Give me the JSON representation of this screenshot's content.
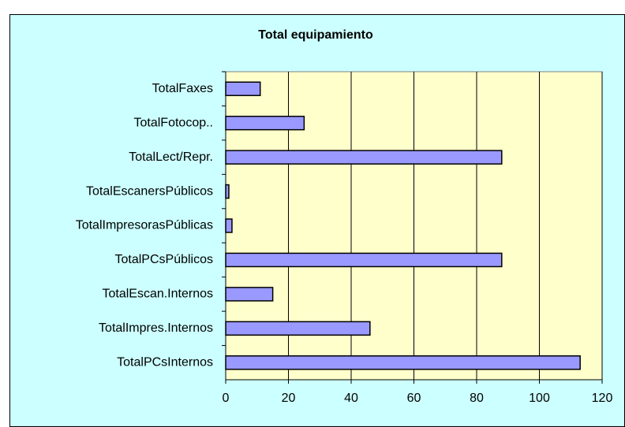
{
  "chart_data": {
    "type": "hbar",
    "title": "Total equipamiento",
    "categories": [
      "TotalFaxes",
      "TotalFotocop..",
      "TotalLect/Repr.",
      "TotalEscanersPúblicos",
      "TotalImpresorasPúblicas",
      "TotalPCsPúblicos",
      "TotalEscan.Internos",
      "TotalImpres.Internos",
      "TotalPCsInternos"
    ],
    "values": [
      11,
      25,
      88,
      1,
      2,
      88,
      15,
      46,
      113
    ],
    "color": "#9999ff",
    "xlim": [
      0,
      120
    ],
    "xticks": [
      0,
      20,
      40,
      60,
      80,
      100,
      120
    ],
    "grid": true
  }
}
